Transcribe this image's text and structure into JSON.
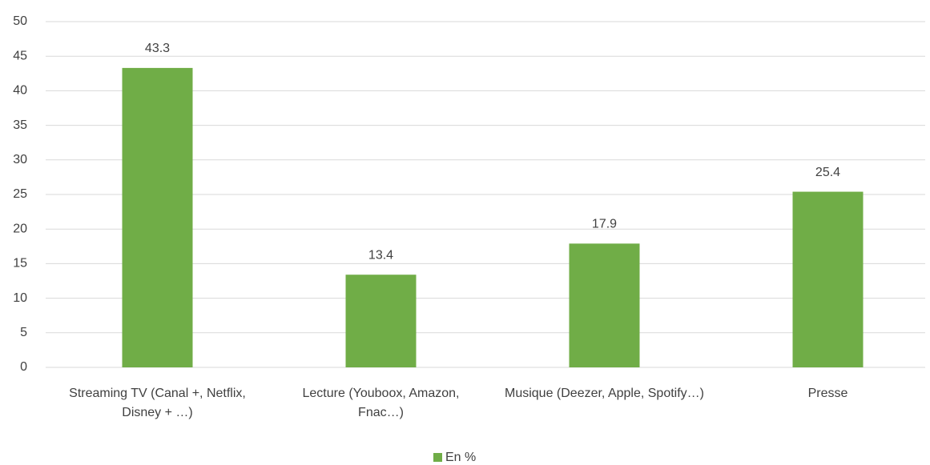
{
  "chart_data": {
    "type": "bar",
    "categories": [
      "Streaming TV (Canal +, Netflix, Disney + …)",
      "Lecture (Youboox, Amazon, Fnac…)",
      "Musique (Deezer, Apple, Spotify…)",
      "Presse"
    ],
    "series": [
      {
        "name": "En %",
        "color": "#70ad47",
        "values": [
          43.3,
          13.4,
          17.9,
          25.4
        ]
      }
    ],
    "ylim": [
      0,
      50
    ],
    "yticks": [
      0,
      5,
      10,
      15,
      20,
      25,
      30,
      35,
      40,
      45,
      50
    ],
    "grid": true,
    "legend": "bottom"
  }
}
